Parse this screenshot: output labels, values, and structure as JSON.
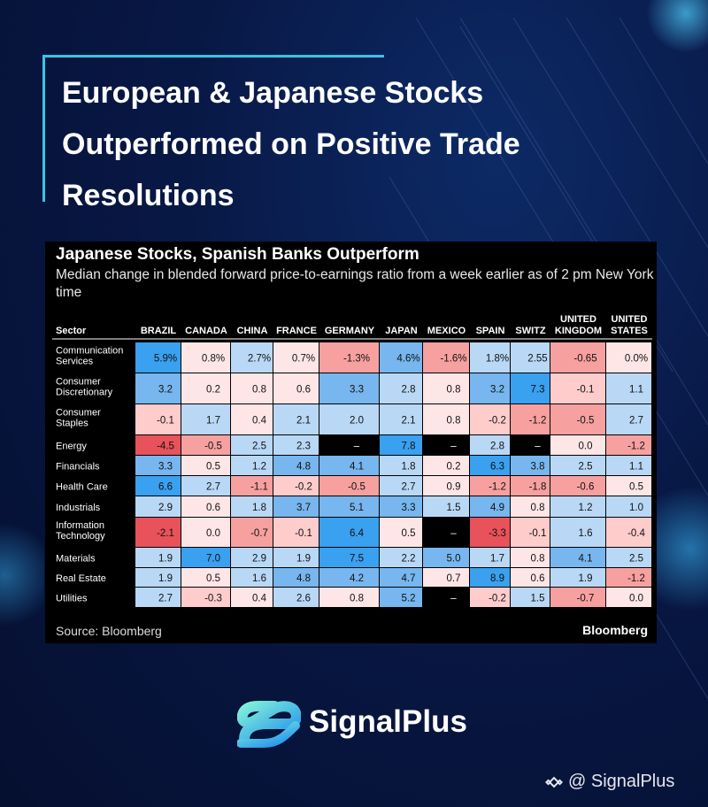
{
  "headline": {
    "lines": [
      "European & Japanese Stocks",
      "Outperformed on Positive Trade",
      "Resolutions"
    ]
  },
  "brand": {
    "name": "SignalPlus",
    "watermark": "@ SignalPlus",
    "accent": "#35c6e6"
  },
  "chart_data": {
    "type": "table",
    "title": "Japanese Stocks, Spanish Banks Outperform",
    "subtitle": "Median change in blended forward price-to-earnings ratio from a week earlier as of 2 pm New York time",
    "row_header": "Sector",
    "columns": [
      [
        "BRAZIL"
      ],
      [
        "CANADA"
      ],
      [
        "CHINA"
      ],
      [
        "FRANCE"
      ],
      [
        "GERMANY"
      ],
      [
        "JAPAN"
      ],
      [
        "MEXICO"
      ],
      [
        "SPAIN"
      ],
      [
        "SWITZ"
      ],
      [
        "UNITED",
        "KINGDOM"
      ],
      [
        "UNITED",
        "STATES"
      ]
    ],
    "rows": [
      {
        "sector": [
          "Communication",
          "Services"
        ],
        "values": [
          "5.9%",
          "0.8%",
          "2.7%",
          "0.7%",
          "-1.3%",
          "4.6%",
          "-1.6%",
          "1.8%",
          "2.55",
          "-0.65",
          "0.0%"
        ]
      },
      {
        "sector": [
          "Consumer",
          "Discretionary"
        ],
        "values": [
          "3.2",
          "0.2",
          "0.8",
          "0.6",
          "3.3",
          "2.8",
          "0.8",
          "3.2",
          "7.3",
          "-0.1",
          "1.1"
        ]
      },
      {
        "sector": [
          "Consumer",
          "Staples"
        ],
        "values": [
          "-0.1",
          "1.7",
          "0.4",
          "2.1",
          "2.0",
          "2.1",
          "0.8",
          "-0.2",
          "-1.2",
          "-0.5",
          "2.7"
        ]
      },
      {
        "sector": [
          "Energy"
        ],
        "values": [
          "-4.5",
          "-0.5",
          "2.5",
          "2.3",
          "–",
          "7.8",
          "–",
          "2.8",
          "–",
          "0.0",
          "-1.2"
        ]
      },
      {
        "sector": [
          "Financials"
        ],
        "values": [
          "3.3",
          "0.5",
          "1.2",
          "4.8",
          "4.1",
          "1.8",
          "0.2",
          "6.3",
          "3.8",
          "2.5",
          "1.1"
        ]
      },
      {
        "sector": [
          "Health Care"
        ],
        "values": [
          "6.6",
          "2.7",
          "-1.1",
          "-0.2",
          "-0.5",
          "2.7",
          "0.9",
          "-1.2",
          "-1.8",
          "-0.6",
          "0.5"
        ]
      },
      {
        "sector": [
          "Industrials"
        ],
        "values": [
          "2.9",
          "0.6",
          "1.8",
          "3.7",
          "5.1",
          "3.3",
          "1.5",
          "4.9",
          "0.8",
          "1.2",
          "1.0"
        ]
      },
      {
        "sector": [
          "Information",
          "Technology"
        ],
        "values": [
          "-2.1",
          "0.0",
          "-0.7",
          "-0.1",
          "6.4",
          "0.5",
          "–",
          "-3.3",
          "-0.1",
          "1.6",
          "-0.4"
        ]
      },
      {
        "sector": [
          "Materials"
        ],
        "values": [
          "1.9",
          "7.0",
          "2.9",
          "1.9",
          "7.5",
          "2.2",
          "5.0",
          "1.7",
          "0.8",
          "4.1",
          "2.5"
        ]
      },
      {
        "sector": [
          "Real Estate"
        ],
        "values": [
          "1.9",
          "0.5",
          "1.6",
          "4.8",
          "4.2",
          "4.7",
          "0.7",
          "8.9",
          "0.6",
          "1.9",
          "-1.2"
        ]
      },
      {
        "sector": [
          "Utilities"
        ],
        "values": [
          "2.7",
          "-0.3",
          "0.4",
          "2.6",
          "0.8",
          "5.2",
          "–",
          "-0.2",
          "1.5",
          "-0.7",
          "0.0"
        ]
      }
    ],
    "source": "Source: Bloomberg",
    "publisher": "Bloomberg",
    "colors": {
      "strong_positive": "#3aa0f0",
      "positive": "#77b6ee",
      "mild_positive": "#b9d8f6",
      "neutral": "#ffe6e6",
      "mild_negative": "#ffcccc",
      "negative": "#f7a0a0",
      "strong_negative": "#e8525a",
      "missing": "#000000"
    }
  }
}
